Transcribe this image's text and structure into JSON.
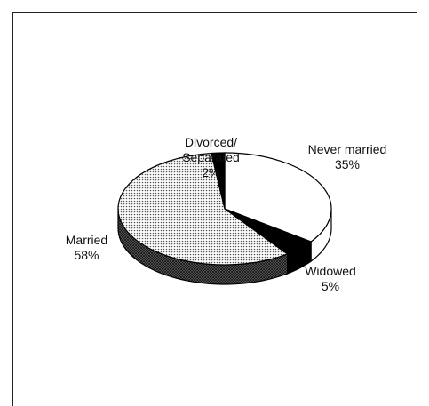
{
  "chart_data": {
    "type": "pie",
    "categories": [
      "Never married",
      "Widowed",
      "Married",
      "Divorced/ Separated"
    ],
    "values": [
      35,
      5,
      58,
      2
    ],
    "value_labels": [
      "35%",
      "5%",
      "58%",
      "2%"
    ],
    "colors": [
      "#ffffff",
      "#000000",
      "#bdbdbd",
      "#000000"
    ]
  }
}
